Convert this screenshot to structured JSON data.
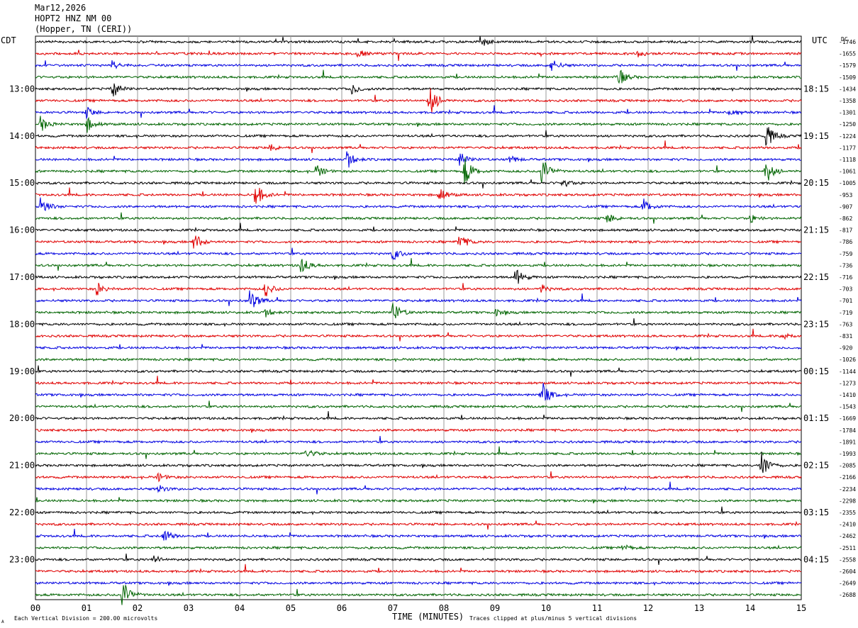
{
  "header": {
    "date": "Mar12,2026",
    "station": "HOPT2 HNZ NM 00",
    "location": "(Hopper, TN (CERI))"
  },
  "left_axis_title": "CDT",
  "right_axis_title": "UTC",
  "dc_title": "DC",
  "xlabel": "TIME (MINUTES)",
  "footer": {
    "left_mark": "A",
    "scale_note": "Each Vertical Division =  200.00 microvolts",
    "clip_note": "Traces clipped at plus/minus 5 vertical divisions"
  },
  "chart_data": {
    "type": "line",
    "x_ticks": [
      "00",
      "01",
      "02",
      "03",
      "04",
      "05",
      "06",
      "07",
      "08",
      "09",
      "10",
      "11",
      "12",
      "13",
      "14",
      "15"
    ],
    "xlim": [
      0,
      15
    ],
    "trace_colors": [
      "#000000",
      "#e00000",
      "#0000e0",
      "#006400"
    ],
    "local_time_labels": [
      "13:00",
      "14:00",
      "15:00",
      "16:00",
      "17:00",
      "18:00",
      "19:00",
      "20:00",
      "21:00",
      "22:00",
      "23:00"
    ],
    "utc_time_labels": [
      "18:15",
      "19:15",
      "20:15",
      "21:15",
      "22:15",
      "23:15",
      "00:15",
      "01:15",
      "02:15",
      "03:15",
      "04:15"
    ],
    "dc_offsets": [
      "-1746",
      "-1655",
      "-1579",
      "-1509",
      "-1434",
      "-1358",
      "-1301",
      "-1250",
      "-1224",
      "-1177",
      "-1118",
      "-1061",
      "-1005",
      "-953",
      "-907",
      "-862",
      "-817",
      "-786",
      "-759",
      "-736",
      "-716",
      "-703",
      "-701",
      "-719",
      "-763",
      "-831",
      "-920",
      "-1026",
      "-1144",
      "-1273",
      "-1410",
      "-1543",
      "-1669",
      "-1784",
      "-1891",
      "-1993",
      "-2085",
      "-2166",
      "-2234",
      "-2298",
      "-2355",
      "-2410",
      "-2462",
      "-2511",
      "-2558",
      "-2604",
      "-2649",
      "-2688"
    ],
    "events": [
      {
        "trace": 0,
        "minute": 8.7,
        "amp": 10
      },
      {
        "trace": 1,
        "minute": 6.3,
        "amp": 6
      },
      {
        "trace": 1,
        "minute": 11.8,
        "amp": 5
      },
      {
        "trace": 2,
        "minute": 1.5,
        "amp": 6
      },
      {
        "trace": 2,
        "minute": 10.1,
        "amp": 10
      },
      {
        "trace": 3,
        "minute": 11.4,
        "amp": 16
      },
      {
        "trace": 4,
        "minute": 1.5,
        "amp": 14
      },
      {
        "trace": 4,
        "minute": 6.2,
        "amp": 8
      },
      {
        "trace": 5,
        "minute": 7.7,
        "amp": 30
      },
      {
        "trace": 6,
        "minute": 1.0,
        "amp": 8
      },
      {
        "trace": 6,
        "minute": 13.6,
        "amp": 10
      },
      {
        "trace": 7,
        "minute": 1.0,
        "amp": 12
      },
      {
        "trace": 7,
        "minute": 0.1,
        "amp": 12
      },
      {
        "trace": 8,
        "minute": 14.3,
        "amp": 22
      },
      {
        "trace": 9,
        "minute": 4.6,
        "amp": 5
      },
      {
        "trace": 10,
        "minute": 6.1,
        "amp": 14
      },
      {
        "trace": 10,
        "minute": 8.3,
        "amp": 12
      },
      {
        "trace": 10,
        "minute": 9.3,
        "amp": 6
      },
      {
        "trace": 11,
        "minute": 5.5,
        "amp": 10
      },
      {
        "trace": 11,
        "minute": 8.4,
        "amp": 24
      },
      {
        "trace": 11,
        "minute": 9.9,
        "amp": 26
      },
      {
        "trace": 11,
        "minute": 14.3,
        "amp": 20
      },
      {
        "trace": 12,
        "minute": 10.3,
        "amp": 8
      },
      {
        "trace": 13,
        "minute": 4.3,
        "amp": 20
      },
      {
        "trace": 13,
        "minute": 7.9,
        "amp": 12
      },
      {
        "trace": 14,
        "minute": 0.1,
        "amp": 16
      },
      {
        "trace": 14,
        "minute": 11.9,
        "amp": 12
      },
      {
        "trace": 15,
        "minute": 11.2,
        "amp": 8
      },
      {
        "trace": 15,
        "minute": 14.0,
        "amp": 6
      },
      {
        "trace": 17,
        "minute": 3.1,
        "amp": 14
      },
      {
        "trace": 17,
        "minute": 8.3,
        "amp": 14
      },
      {
        "trace": 18,
        "minute": 7.0,
        "amp": 10
      },
      {
        "trace": 19,
        "minute": 5.2,
        "amp": 14
      },
      {
        "trace": 20,
        "minute": 9.4,
        "amp": 14
      },
      {
        "trace": 21,
        "minute": 1.2,
        "amp": 10
      },
      {
        "trace": 21,
        "minute": 4.5,
        "amp": 12
      },
      {
        "trace": 21,
        "minute": 9.9,
        "amp": 6
      },
      {
        "trace": 22,
        "minute": 4.2,
        "amp": 18
      },
      {
        "trace": 23,
        "minute": 7.0,
        "amp": 16
      },
      {
        "trace": 23,
        "minute": 4.5,
        "amp": 6
      },
      {
        "trace": 23,
        "minute": 9.0,
        "amp": 5
      },
      {
        "trace": 25,
        "minute": 14.6,
        "amp": 8
      },
      {
        "trace": 30,
        "minute": 9.9,
        "amp": 24
      },
      {
        "trace": 35,
        "minute": 5.3,
        "amp": 8
      },
      {
        "trace": 36,
        "minute": 14.2,
        "amp": 24
      },
      {
        "trace": 37,
        "minute": 2.4,
        "amp": 6
      },
      {
        "trace": 38,
        "minute": 2.4,
        "amp": 6
      },
      {
        "trace": 42,
        "minute": 2.5,
        "amp": 12
      },
      {
        "trace": 43,
        "minute": 11.5,
        "amp": 5
      },
      {
        "trace": 44,
        "minute": 2.3,
        "amp": 6
      },
      {
        "trace": 47,
        "minute": 1.7,
        "amp": 24
      }
    ]
  }
}
